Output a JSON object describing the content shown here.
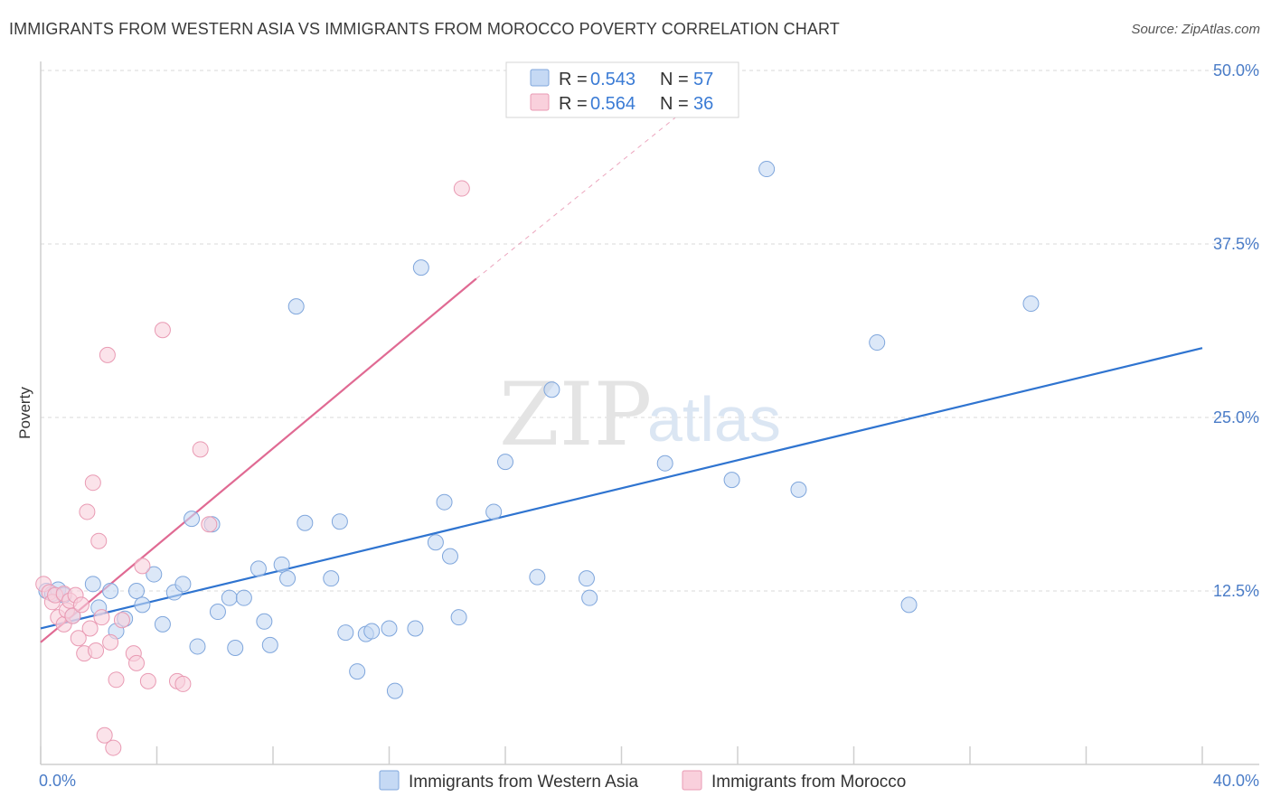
{
  "header": {
    "title": "IMMIGRANTS FROM WESTERN ASIA VS IMMIGRANTS FROM MOROCCO POVERTY CORRELATION CHART",
    "source": "Source: ZipAtlas.com"
  },
  "watermark": {
    "zip": "ZIP",
    "atlas": "atlas"
  },
  "colors": {
    "blue_fill": "#c5d9f4",
    "blue_stroke": "#7fa6dc",
    "blue_line": "#2f74d0",
    "pink_fill": "#f9d0dc",
    "pink_stroke": "#e99ab3",
    "pink_line": "#e06a93",
    "grid": "#d8d8d8",
    "axis_label": "#4a7cc7"
  },
  "legend": {
    "rows": [
      {
        "r_label": "R =",
        "r_value": "0.543",
        "n_label": "N =",
        "n_value": "57"
      },
      {
        "r_label": "R =",
        "r_value": "0.564",
        "n_label": "N =",
        "n_value": "36"
      }
    ]
  },
  "chart_data": {
    "type": "scatter",
    "title": "IMMIGRANTS FROM WESTERN ASIA VS IMMIGRANTS FROM MOROCCO POVERTY CORRELATION CHART",
    "xlabel": "",
    "ylabel": "Poverty",
    "xlim": [
      0,
      40
    ],
    "ylim": [
      0,
      50
    ],
    "x_tick_labels": {
      "min": "0.0%",
      "max": "40.0%"
    },
    "y_ticks": [
      12.5,
      25.0,
      37.5,
      50.0
    ],
    "y_tick_labels": [
      "12.5%",
      "25.0%",
      "37.5%",
      "50.0%"
    ],
    "series": [
      {
        "name": "Immigrants from Western Asia",
        "color": "blue",
        "r": 0.543,
        "n": 57,
        "trend": {
          "x0": 0,
          "y0": 9.8,
          "x1": 40,
          "y1": 30.0,
          "dashed_to": null
        },
        "points": [
          [
            0.2,
            12.5
          ],
          [
            0.4,
            12.3
          ],
          [
            0.6,
            12.6
          ],
          [
            0.8,
            12.2
          ],
          [
            1.1,
            10.7
          ],
          [
            1.8,
            13.0
          ],
          [
            2.0,
            11.3
          ],
          [
            2.4,
            12.5
          ],
          [
            2.6,
            9.6
          ],
          [
            2.9,
            10.5
          ],
          [
            3.3,
            12.5
          ],
          [
            3.5,
            11.5
          ],
          [
            3.9,
            13.7
          ],
          [
            4.2,
            10.1
          ],
          [
            4.6,
            12.4
          ],
          [
            4.9,
            13.0
          ],
          [
            5.2,
            17.7
          ],
          [
            5.4,
            8.5
          ],
          [
            5.9,
            17.3
          ],
          [
            6.1,
            11.0
          ],
          [
            6.5,
            12.0
          ],
          [
            6.7,
            8.4
          ],
          [
            7.0,
            12.0
          ],
          [
            7.5,
            14.1
          ],
          [
            7.7,
            10.3
          ],
          [
            7.9,
            8.6
          ],
          [
            8.3,
            14.4
          ],
          [
            8.5,
            13.4
          ],
          [
            8.8,
            33.0
          ],
          [
            9.1,
            17.4
          ],
          [
            10.0,
            13.4
          ],
          [
            10.3,
            17.5
          ],
          [
            10.5,
            9.5
          ],
          [
            10.9,
            6.7
          ],
          [
            11.2,
            9.4
          ],
          [
            11.4,
            9.6
          ],
          [
            12.0,
            9.8
          ],
          [
            12.2,
            5.3
          ],
          [
            12.9,
            9.8
          ],
          [
            13.1,
            35.8
          ],
          [
            13.6,
            16.0
          ],
          [
            13.9,
            18.9
          ],
          [
            14.1,
            15.0
          ],
          [
            14.4,
            10.6
          ],
          [
            15.6,
            18.2
          ],
          [
            16.0,
            21.8
          ],
          [
            17.1,
            13.5
          ],
          [
            17.6,
            27.0
          ],
          [
            18.8,
            13.4
          ],
          [
            18.9,
            12.0
          ],
          [
            21.5,
            21.7
          ],
          [
            23.8,
            20.5
          ],
          [
            25.0,
            42.9
          ],
          [
            26.1,
            19.8
          ],
          [
            28.8,
            30.4
          ],
          [
            29.9,
            11.5
          ],
          [
            34.1,
            33.2
          ]
        ]
      },
      {
        "name": "Immigrants from Morocco",
        "color": "pink",
        "r": 0.564,
        "n": 36,
        "trend": {
          "x0": 0,
          "y0": 8.8,
          "x1": 15.0,
          "y1": 35.0,
          "dashed_to": [
            22.5,
            47.7
          ]
        },
        "points": [
          [
            0.1,
            13.0
          ],
          [
            0.3,
            12.4
          ],
          [
            0.4,
            11.7
          ],
          [
            0.5,
            12.2
          ],
          [
            0.6,
            10.6
          ],
          [
            0.8,
            10.1
          ],
          [
            0.8,
            12.3
          ],
          [
            0.9,
            11.1
          ],
          [
            1.0,
            11.8
          ],
          [
            1.1,
            10.7
          ],
          [
            1.2,
            12.2
          ],
          [
            1.4,
            11.5
          ],
          [
            1.5,
            8.0
          ],
          [
            1.6,
            18.2
          ],
          [
            1.7,
            9.8
          ],
          [
            1.8,
            20.3
          ],
          [
            1.9,
            8.2
          ],
          [
            2.0,
            16.1
          ],
          [
            2.1,
            10.6
          ],
          [
            2.3,
            29.5
          ],
          [
            2.4,
            8.8
          ],
          [
            2.5,
            1.2
          ],
          [
            2.6,
            6.1
          ],
          [
            2.8,
            10.4
          ],
          [
            3.2,
            8.0
          ],
          [
            3.3,
            7.3
          ],
          [
            3.5,
            14.3
          ],
          [
            3.7,
            6.0
          ],
          [
            4.2,
            31.3
          ],
          [
            4.7,
            6.0
          ],
          [
            4.9,
            5.8
          ],
          [
            5.5,
            22.7
          ],
          [
            5.8,
            17.3
          ],
          [
            2.2,
            2.1
          ],
          [
            14.5,
            41.5
          ],
          [
            1.3,
            9.1
          ]
        ]
      }
    ],
    "legend_position": "top-center"
  },
  "bottom_legend": {
    "items": [
      {
        "label": "Immigrants from Western Asia"
      },
      {
        "label": "Immigrants from Morocco"
      }
    ]
  }
}
